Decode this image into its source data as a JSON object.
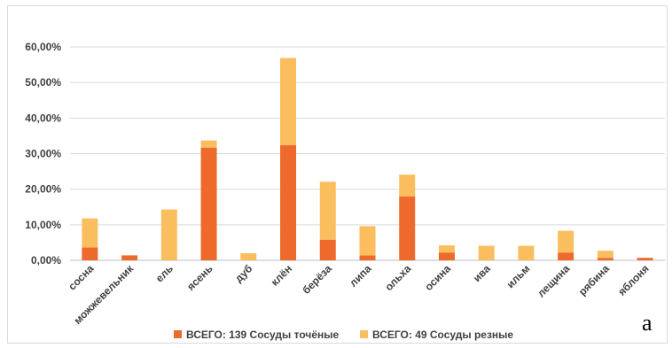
{
  "chart_data": {
    "type": "bar",
    "stacked": true,
    "categories": [
      "сосна",
      "можжевельник",
      "ель",
      "ясень",
      "дуб",
      "клён",
      "берёза",
      "липа",
      "ольха",
      "осина",
      "ива",
      "ильм",
      "лещина",
      "рябина",
      "яблоня"
    ],
    "series": [
      {
        "name": "ВСЕГО: 139 Сосуды точёные",
        "color": "#ED6A2C",
        "values": [
          3.6,
          1.4,
          0.0,
          31.7,
          0.0,
          32.4,
          5.8,
          1.4,
          18.0,
          2.2,
          0.0,
          0.0,
          2.2,
          0.7,
          0.7
        ]
      },
      {
        "name": "ВСЕГО: 49 Сосуды резные",
        "color": "#FBBE5E",
        "values": [
          8.2,
          0.0,
          14.3,
          2.0,
          2.0,
          24.5,
          16.3,
          8.2,
          6.1,
          2.0,
          4.1,
          4.1,
          6.1,
          2.0,
          0.0
        ]
      }
    ],
    "ylim": [
      0,
      60
    ],
    "yticks": [
      "0,00%",
      "10,00%",
      "20,00%",
      "30,00%",
      "40,00%",
      "50,00%",
      "60,00%"
    ],
    "grid": true,
    "legend": "bottom",
    "xlabel": "",
    "ylabel": ""
  },
  "panel_label": "а"
}
